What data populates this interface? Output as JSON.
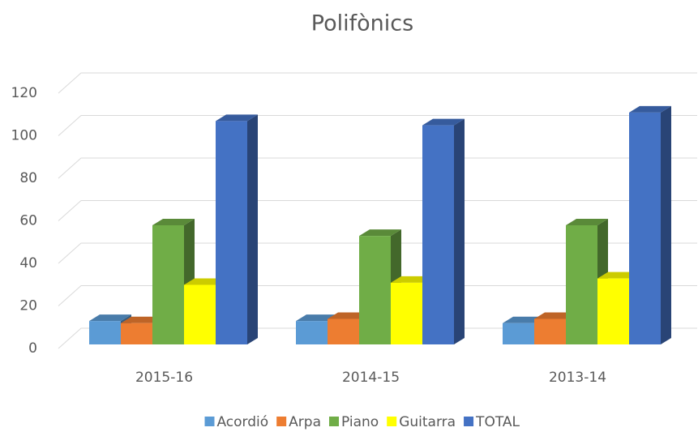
{
  "chart_data": {
    "type": "bar",
    "title": "Polifònics",
    "categories": [
      "2015-16",
      "2014-15",
      "2013-14"
    ],
    "series": [
      {
        "name": "Acordió",
        "color": "#5b9bd5",
        "values": [
          11,
          11,
          10
        ]
      },
      {
        "name": "Arpa",
        "color": "#ed7d31",
        "values": [
          10,
          12,
          12
        ]
      },
      {
        "name": "Piano",
        "color": "#70ad47",
        "values": [
          56,
          51,
          56
        ]
      },
      {
        "name": "Guitarra",
        "color": "#ffff00",
        "values": [
          28,
          29,
          31
        ]
      },
      {
        "name": "TOTAL",
        "color": "#4472c4",
        "values": [
          105,
          103,
          109
        ]
      }
    ],
    "ylim": [
      0,
      120
    ],
    "yticks": [
      0,
      20,
      40,
      60,
      80,
      100,
      120
    ],
    "grid": true,
    "legend": "bottom"
  }
}
